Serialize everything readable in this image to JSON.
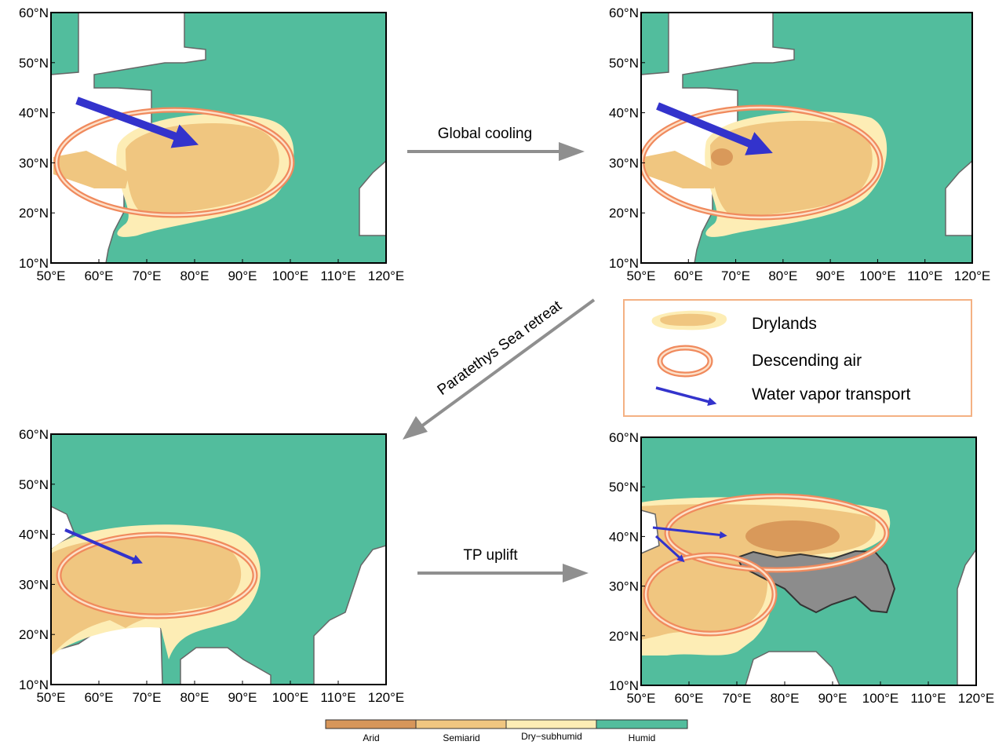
{
  "maps": [
    {
      "lat_labels": [
        "60°N",
        "50°N",
        "40°N",
        "30°N",
        "20°N",
        "10°N"
      ],
      "lon_labels": [
        "50°E",
        "60°E",
        "70°E",
        "80°E",
        "90°E",
        "100°E",
        "110°E",
        "120°E"
      ]
    },
    {
      "lat_labels": [
        "60°N",
        "50°N",
        "40°N",
        "30°N",
        "20°N",
        "10°N"
      ],
      "lon_labels": [
        "50°E",
        "60°E",
        "70°E",
        "80°E",
        "90°E",
        "100°E",
        "110°E",
        "120°E"
      ]
    },
    {
      "lat_labels": [
        "60°N",
        "50°N",
        "40°N",
        "30°N",
        "20°N",
        "10°N"
      ],
      "lon_labels": [
        "50°E",
        "60°E",
        "70°E",
        "80°E",
        "90°E",
        "100°E",
        "110°E",
        "120°E"
      ]
    },
    {
      "lat_labels": [
        "60°N",
        "50°N",
        "40°N",
        "30°N",
        "20°N",
        "10°N"
      ],
      "lon_labels": [
        "50°E",
        "60°E",
        "70°E",
        "80°E",
        "90°E",
        "100°E",
        "110°E",
        "120°E"
      ]
    }
  ],
  "arrows": [
    "Global cooling",
    "Paratethys Sea retreat",
    "TP uplift"
  ],
  "legend": [
    "Drylands",
    "Descending air",
    "Water vapor transport"
  ],
  "colorbar": [
    "Arid",
    "Semiarid",
    "Dry−subhumid",
    "Humid"
  ]
}
